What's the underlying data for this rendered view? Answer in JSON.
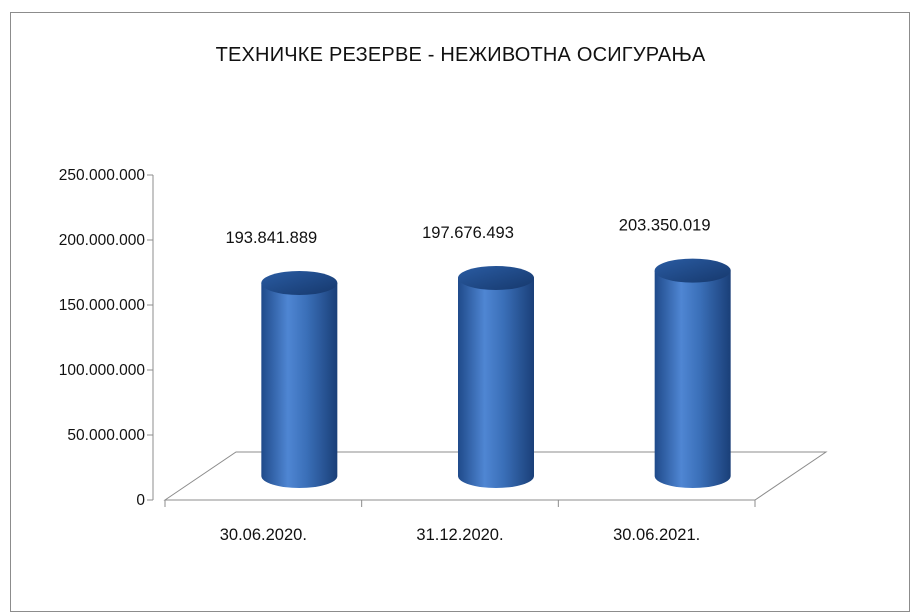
{
  "chart_data": {
    "type": "bar",
    "title": "ТЕХНИЧКЕ РЕЗЕРВЕ - НЕЖИВОТНА ОСИГУРАЊА",
    "categories": [
      "30.06.2020.",
      "31.12.2020.",
      "30.06.2021."
    ],
    "values": [
      193841889,
      197676493,
      203350019
    ],
    "value_labels": [
      "193.841.889",
      "197.676.493",
      "203.350.019"
    ],
    "ylim": [
      0,
      250000000
    ],
    "yticks": [
      0,
      50000000,
      100000000,
      150000000,
      200000000,
      250000000
    ],
    "ytick_labels": [
      "0",
      "50.000.000",
      "100.000.000",
      "150.000.000",
      "200.000.000",
      "250.000.000"
    ],
    "grid": false,
    "legend": "none",
    "style": "3d-cylinder",
    "bar_color": "#3a6fb8"
  }
}
